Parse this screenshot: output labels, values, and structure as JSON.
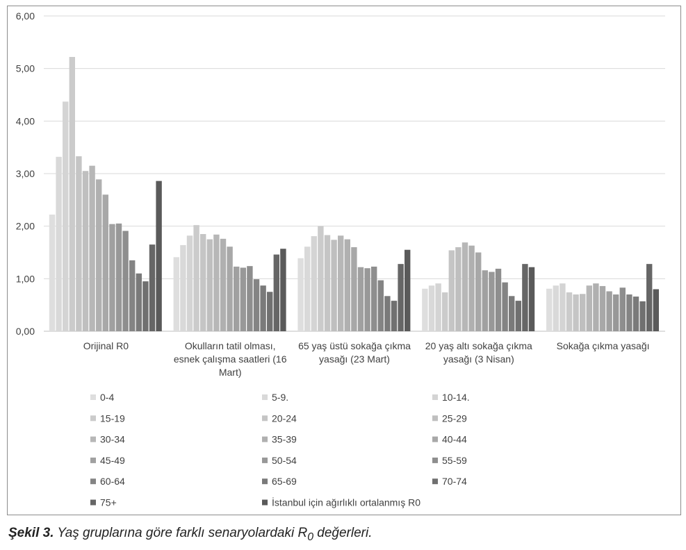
{
  "chart_data": {
    "type": "bar",
    "ylim": [
      0,
      6
    ],
    "ytick_labels": [
      "0,00",
      "1,00",
      "2,00",
      "3,00",
      "4,00",
      "5,00",
      "6,00"
    ],
    "ytick_values": [
      0,
      1,
      2,
      3,
      4,
      5,
      6
    ],
    "grid": true,
    "legend_position": "bottom",
    "categories": [
      [
        "Orijinal R0"
      ],
      [
        "Okulların tatil olması,",
        "esnek çalışma saatleri (16",
        "Mart)"
      ],
      [
        "65 yaş üstü sokağa çıkma",
        "yasağı (23 Mart)"
      ],
      [
        "20 yaş altı sokağa çıkma",
        "yasağı (3 Nisan)"
      ],
      [
        "Sokağa çıkma yasağı"
      ]
    ],
    "series": [
      {
        "name": "0-4",
        "color": "#dedede",
        "values": [
          2.22,
          1.41,
          1.39,
          0.81,
          0.81
        ]
      },
      {
        "name": "5-9.",
        "color": "#d9d9d9",
        "values": [
          3.32,
          1.64,
          1.61,
          0.87,
          0.87
        ]
      },
      {
        "name": "10-14.",
        "color": "#d4d4d4",
        "values": [
          4.37,
          1.82,
          1.81,
          0.91,
          0.91
        ]
      },
      {
        "name": "15-19",
        "color": "#cbcbcb",
        "values": [
          5.22,
          2.02,
          2.0,
          0.74,
          0.74
        ]
      },
      {
        "name": "20-24",
        "color": "#c5c5c5",
        "values": [
          3.33,
          1.85,
          1.83,
          1.54,
          0.7
        ]
      },
      {
        "name": "25-29",
        "color": "#bfbfbf",
        "values": [
          3.05,
          1.75,
          1.74,
          1.6,
          0.71
        ]
      },
      {
        "name": "30-34",
        "color": "#b7b7b7",
        "values": [
          3.15,
          1.84,
          1.82,
          1.69,
          0.87
        ]
      },
      {
        "name": "35-39",
        "color": "#b0b0b0",
        "values": [
          2.89,
          1.76,
          1.75,
          1.63,
          0.91
        ]
      },
      {
        "name": "40-44",
        "color": "#a8a8a8",
        "values": [
          2.6,
          1.61,
          1.6,
          1.5,
          0.86
        ]
      },
      {
        "name": "45-49",
        "color": "#a0a0a0",
        "values": [
          2.04,
          1.23,
          1.22,
          1.16,
          0.76
        ]
      },
      {
        "name": "50-54",
        "color": "#989898",
        "values": [
          2.05,
          1.21,
          1.2,
          1.13,
          0.7
        ]
      },
      {
        "name": "55-59",
        "color": "#8e8e8e",
        "values": [
          1.91,
          1.24,
          1.23,
          1.19,
          0.83
        ]
      },
      {
        "name": "60-64",
        "color": "#848484",
        "values": [
          1.35,
          0.99,
          0.97,
          0.93,
          0.7
        ]
      },
      {
        "name": "65-69",
        "color": "#7a7a7a",
        "values": [
          1.1,
          0.87,
          0.67,
          0.67,
          0.66
        ]
      },
      {
        "name": "70-74",
        "color": "#707070",
        "values": [
          0.95,
          0.75,
          0.58,
          0.58,
          0.57
        ]
      },
      {
        "name": "75+",
        "color": "#666666",
        "values": [
          1.65,
          1.46,
          1.28,
          1.28,
          1.28
        ]
      },
      {
        "name": "İstanbul için ağırlıklı ortalanmış R0",
        "color": "#5a5a5a",
        "values": [
          2.86,
          1.57,
          1.55,
          1.22,
          0.8
        ]
      }
    ]
  },
  "caption": {
    "label": "Şekil 3.",
    "text_before": " Yaş gruplarına göre farklı senaryolardaki R",
    "subscript": "0",
    "text_after": " değerleri."
  },
  "colors": {
    "grid": "#d9d9d9",
    "axis": "#bfbfbf",
    "text": "#404040"
  }
}
